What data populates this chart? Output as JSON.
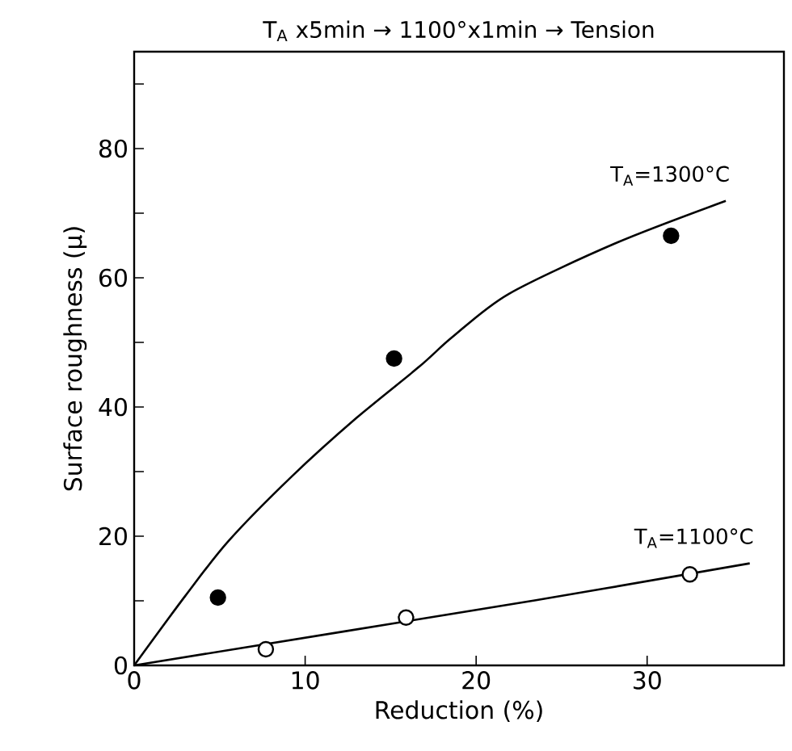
{
  "chart_data": {
    "type": "scatter",
    "title": "T$_{A}$ x5min → 1100°x1min → Tension",
    "xlabel": "Reduction (%)",
    "ylabel": "Surface roughness (μ)",
    "xlim": [
      0,
      38
    ],
    "ylim": [
      0,
      95
    ],
    "xticks": [
      0,
      10,
      20,
      30
    ],
    "yticks": [
      0,
      {
        "value": 10,
        "label": null
      },
      20,
      {
        "value": 30,
        "label": null
      },
      40,
      {
        "value": 50,
        "label": null
      },
      60,
      {
        "value": 70,
        "label": null
      },
      80,
      {
        "value": 90,
        "label": null
      }
    ],
    "series": [
      {
        "type": "line",
        "name": "T$_{A}$=1300°C",
        "color": "#000000",
        "marker": "none",
        "line_style": "solid",
        "x": [
          0,
          3,
          5.5,
          9.2,
          13,
          16.7,
          18.6,
          21.9,
          28.2,
          34.6
        ],
        "values": [
          0,
          10.8,
          19.2,
          29.2,
          38.3,
          46.3,
          50.8,
          57.5,
          65.4,
          71.9
        ]
      },
      {
        "type": "line",
        "name": "T$_{A}$=1100°C",
        "color": "#000000",
        "marker": "none",
        "line_style": "solid",
        "x": [
          0,
          23.5,
          36
        ],
        "values": [
          0,
          10.1,
          15.8
        ]
      },
      {
        "color": "#000000",
        "marker": "circle",
        "x": [
          4.9,
          15.2,
          31.4
        ],
        "values": [
          10.5,
          47.5,
          66.5
        ]
      },
      {
        "color": "#ffffff",
        "marker": "circle",
        "x": [
          7.7,
          15.9,
          32.5
        ],
        "values": [
          2.5,
          7.4,
          14.1
        ]
      }
    ]
  }
}
